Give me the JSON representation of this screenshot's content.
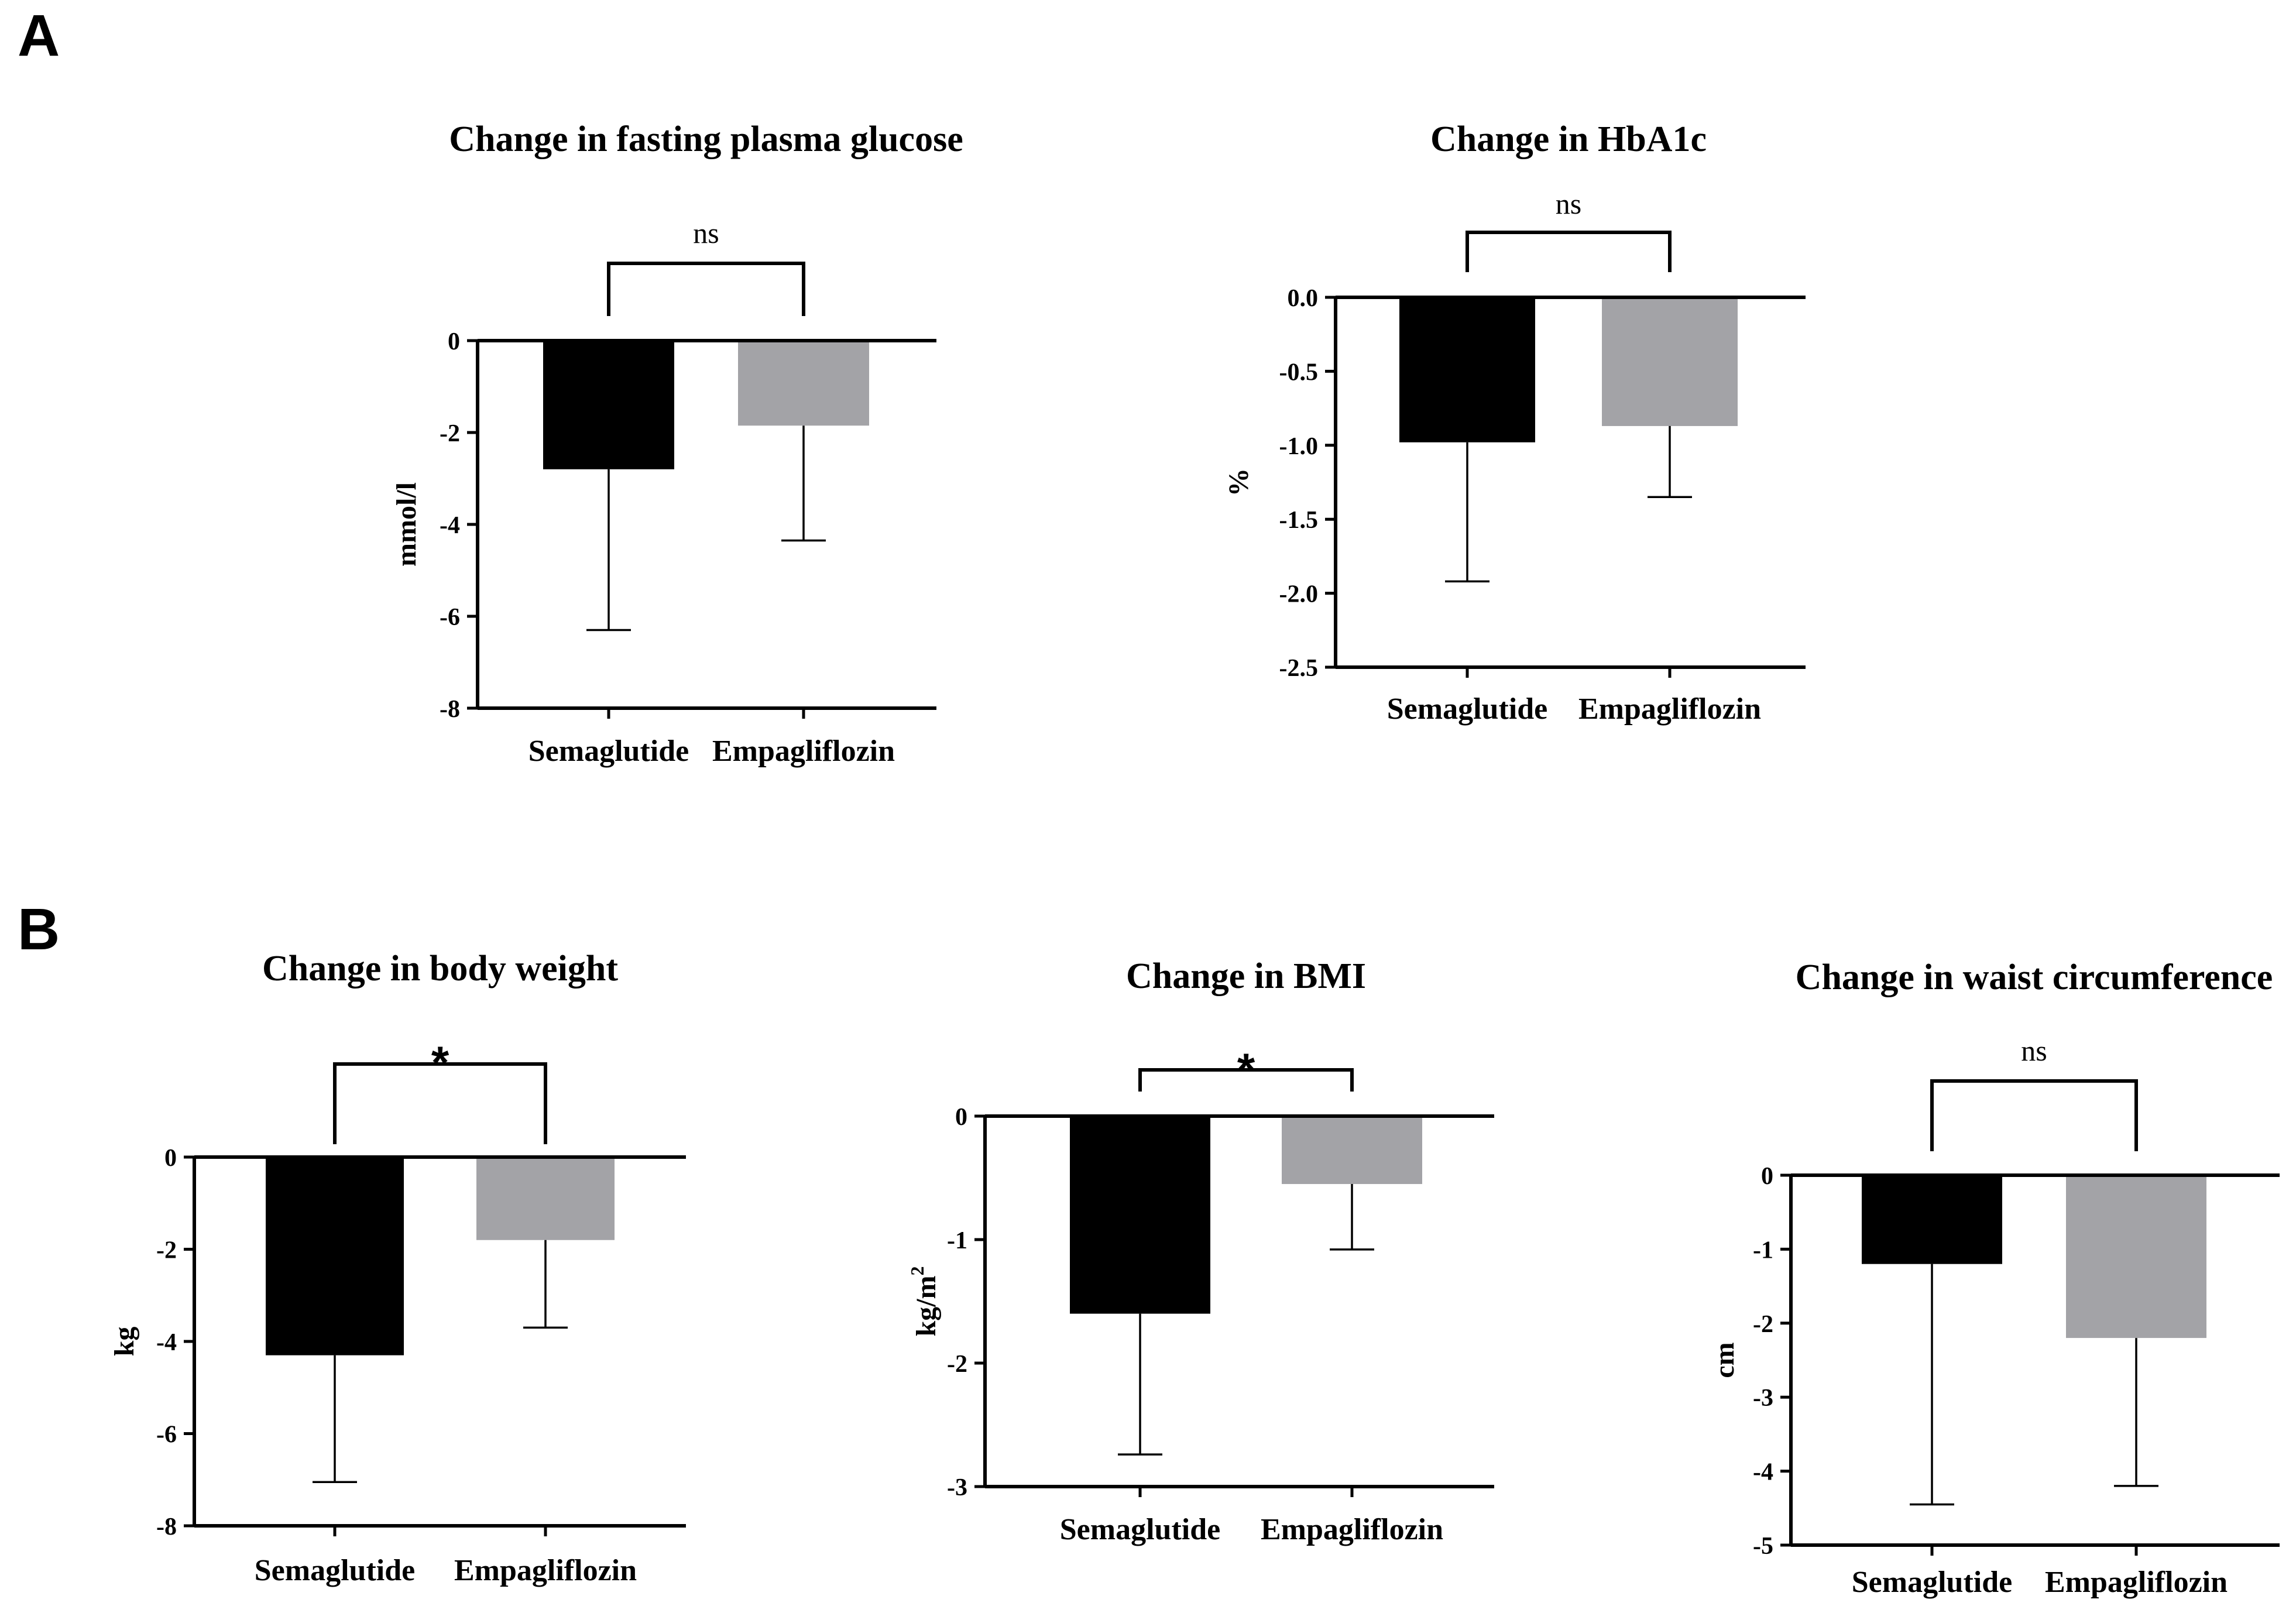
{
  "panels": [
    "A",
    "B"
  ],
  "chart_data": [
    {
      "panel": "A",
      "type": "bar",
      "title": "Change in fasting plasma glucose",
      "categories": [
        "Semaglutide",
        "Empagliflozin"
      ],
      "values": [
        -2.8,
        -1.85
      ],
      "error_low": [
        -6.3,
        -4.35
      ],
      "colors": [
        "#000000",
        "#a3a3a7"
      ],
      "ylabel": "mmol/l",
      "ylim": [
        -8,
        0
      ],
      "yticks": [
        "0",
        "-2",
        "-4",
        "-6",
        "-8"
      ],
      "significance": "ns"
    },
    {
      "panel": "A",
      "type": "bar",
      "title": "Change in HbA1c",
      "categories": [
        "Semaglutide",
        "Empagliflozin"
      ],
      "values": [
        -0.98,
        -0.87
      ],
      "error_low": [
        -1.92,
        -1.35
      ],
      "colors": [
        "#000000",
        "#a3a3a7"
      ],
      "ylabel": "%",
      "ylim": [
        -2.5,
        0
      ],
      "yticks": [
        "0.0",
        "-0.5",
        "-1.0",
        "-1.5",
        "-2.0",
        "-2.5"
      ],
      "significance": "ns"
    },
    {
      "panel": "B",
      "type": "bar",
      "title": "Change in body weight",
      "categories": [
        "Semaglutide",
        "Empagliflozin"
      ],
      "values": [
        -4.3,
        -1.8
      ],
      "error_low": [
        -7.05,
        -3.7
      ],
      "colors": [
        "#000000",
        "#a3a3a7"
      ],
      "ylabel": "kg",
      "ylim": [
        -8,
        0
      ],
      "yticks": [
        "0",
        "-2",
        "-4",
        "-6",
        "-8"
      ],
      "significance": "*"
    },
    {
      "panel": "B",
      "type": "bar",
      "title": "Change in BMI",
      "categories": [
        "Semaglutide",
        "Empagliflozin"
      ],
      "values": [
        -1.6,
        -0.55
      ],
      "error_low": [
        -2.74,
        -1.08
      ],
      "colors": [
        "#000000",
        "#a3a3a7"
      ],
      "ylabel": "kg/m",
      "ylabel_superscript": "2",
      "ylim": [
        -3,
        0
      ],
      "yticks": [
        "0",
        "-1",
        "-2",
        "-3"
      ],
      "significance": "*"
    },
    {
      "panel": "B",
      "type": "bar",
      "title": "Change in waist circumference",
      "categories": [
        "Semaglutide",
        "Empagliflozin"
      ],
      "values": [
        -1.2,
        -2.2
      ],
      "error_low": [
        -4.45,
        -4.2
      ],
      "colors": [
        "#000000",
        "#a3a3a7"
      ],
      "ylabel": "cm",
      "ylim": [
        -5,
        0
      ],
      "yticks": [
        "0",
        "-1",
        "-2",
        "-3",
        "-4",
        "-5"
      ],
      "significance": "ns"
    }
  ]
}
